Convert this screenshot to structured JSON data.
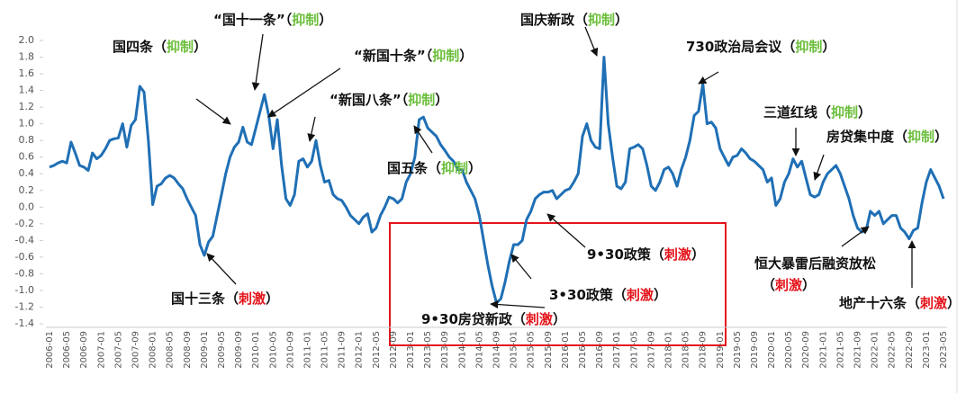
{
  "chart_data": {
    "type": "line",
    "color": "#1f6fb5",
    "categories": [
      "2006-01",
      null,
      null,
      null,
      "2006-05",
      null,
      null,
      null,
      "2006-09",
      null,
      null,
      null,
      "2007-01",
      null,
      null,
      null,
      "2007-05",
      null,
      null,
      null,
      "2007-09",
      null,
      null,
      null,
      "2008-01",
      null,
      null,
      null,
      "2008-05",
      null,
      null,
      null,
      "2008-09",
      null,
      null,
      null,
      "2009-01",
      null,
      null,
      null,
      "2009-05",
      null,
      null,
      null,
      "2009-09",
      null,
      null,
      null,
      "2010-01",
      null,
      null,
      null,
      "2010-05",
      null,
      null,
      null,
      "2010-09",
      null,
      null,
      null,
      "2011-01",
      null,
      null,
      null,
      "2011-05",
      null,
      null,
      null,
      "2011-09",
      null,
      null,
      null,
      "2012-01",
      null,
      null,
      null,
      "2012-05",
      null,
      null,
      null,
      "2012-09",
      null,
      null,
      null,
      "2013-01",
      null,
      null,
      null,
      "2013-05",
      null,
      null,
      null,
      "2013-09",
      null,
      null,
      null,
      "2014-01",
      null,
      null,
      null,
      "2014-05",
      null,
      null,
      null,
      "2014-09",
      null,
      null,
      null,
      "2015-01",
      null,
      null,
      null,
      "2015-05",
      null,
      null,
      null,
      "2015-09",
      null,
      null,
      null,
      "2016-01",
      null,
      null,
      null,
      "2016-05",
      null,
      null,
      null,
      "2016-09",
      null,
      null,
      null,
      "2017-01",
      null,
      null,
      null,
      "2017-05",
      null,
      null,
      null,
      "2017-09",
      null,
      null,
      null,
      "2018-01",
      null,
      null,
      null,
      "2018-05",
      null,
      null,
      null,
      "2018-09",
      null,
      null,
      null,
      "2019-01",
      null,
      null,
      null,
      "2019-05",
      null,
      null,
      null,
      "2019-09",
      null,
      null,
      null,
      "2020-01",
      null,
      null,
      null,
      "2020-05",
      null,
      null,
      null,
      "2020-09",
      null,
      null,
      null,
      "2021-01",
      null,
      null,
      null,
      "2021-05",
      null,
      null,
      null,
      "2021-09",
      null,
      null,
      null,
      "2022-01",
      null,
      null,
      null,
      "2022-05",
      null,
      null,
      null,
      "2022-09",
      null,
      null,
      null,
      "2023-01",
      null,
      null,
      null,
      "2023-05"
    ],
    "values": [
      0.48,
      0.5,
      0.53,
      0.55,
      0.53,
      0.78,
      0.65,
      0.5,
      0.48,
      0.44,
      0.65,
      0.58,
      0.62,
      0.7,
      0.8,
      0.82,
      0.83,
      1.0,
      0.72,
      0.98,
      1.05,
      1.45,
      1.38,
      0.8,
      0.03,
      0.25,
      0.28,
      0.35,
      0.38,
      0.35,
      0.28,
      0.22,
      0.1,
      0.0,
      -0.1,
      -0.45,
      -0.58,
      -0.42,
      -0.35,
      -0.1,
      0.15,
      0.4,
      0.6,
      0.72,
      0.78,
      0.96,
      0.78,
      0.75,
      0.95,
      1.15,
      1.35,
      1.1,
      0.7,
      1.05,
      0.5,
      0.1,
      0.02,
      0.15,
      0.55,
      0.58,
      0.48,
      0.55,
      0.8,
      0.5,
      0.3,
      0.32,
      0.15,
      0.1,
      0.08,
      0.0,
      -0.1,
      -0.15,
      -0.2,
      -0.12,
      -0.08,
      -0.3,
      -0.25,
      -0.1,
      0.0,
      0.12,
      0.1,
      0.05,
      0.1,
      0.3,
      0.4,
      0.6,
      1.05,
      1.08,
      0.95,
      0.9,
      0.85,
      0.75,
      0.68,
      0.6,
      0.55,
      0.45,
      0.45,
      0.3,
      0.2,
      0.1,
      -0.1,
      -0.4,
      -0.7,
      -0.95,
      -1.15,
      -1.1,
      -0.9,
      -0.65,
      -0.45,
      -0.45,
      -0.4,
      -0.15,
      -0.05,
      0.1,
      0.15,
      0.18,
      0.18,
      0.2,
      0.1,
      0.15,
      0.2,
      0.22,
      0.3,
      0.4,
      0.85,
      1.0,
      0.8,
      0.72,
      0.7,
      1.8,
      1.0,
      0.6,
      0.25,
      0.22,
      0.3,
      0.7,
      0.72,
      0.75,
      0.7,
      0.5,
      0.25,
      0.2,
      0.3,
      0.45,
      0.48,
      0.4,
      0.25,
      0.45,
      0.6,
      0.8,
      1.1,
      1.15,
      1.48,
      1.0,
      1.02,
      0.95,
      0.7,
      0.6,
      0.5,
      0.6,
      0.62,
      0.7,
      0.65,
      0.58,
      0.55,
      0.5,
      0.45,
      0.3,
      0.35,
      0.02,
      0.1,
      0.3,
      0.4,
      0.58,
      0.48,
      0.55,
      0.35,
      0.15,
      0.12,
      0.15,
      0.3,
      0.4,
      0.45,
      0.5,
      0.4,
      0.25,
      0.1,
      -0.1,
      -0.25,
      -0.3,
      -0.28,
      -0.05,
      -0.1,
      -0.05,
      -0.2,
      -0.15,
      -0.1,
      -0.1,
      -0.25,
      -0.3,
      -0.38,
      -0.28,
      -0.25,
      0.05,
      0.3,
      0.45,
      0.35,
      0.25,
      0.1
    ],
    "ylim": [
      -1.4,
      2.0
    ],
    "yticks": [
      {
        "value": 2,
        "label": "2.0"
      },
      1.8,
      1.6,
      1.4,
      1.2,
      {
        "value": 1,
        "label": "1.0"
      },
      0.8,
      0.6,
      0.4,
      0.2,
      {
        "value": 0,
        "label": "0.0"
      },
      -0.2,
      -0.4,
      -0.6,
      -0.8,
      {
        "value": -1,
        "label": "-1.0"
      },
      -1.2,
      -1.4
    ],
    "bracket_open": "（",
    "bracket_close": "）",
    "tag_colors": {
      "抑制": "#6cbf3c",
      "刺激": "#e4141b"
    },
    "annotations": [
      {
        "text": "国四条",
        "tag": "抑制"
      },
      {
        "text": "“国十一条”",
        "tag": "抑制"
      },
      {
        "text": "“新国十条”",
        "tag": "抑制"
      },
      {
        "text": "“新国八条”",
        "tag": "抑制"
      },
      {
        "text": "国五条",
        "tag": "抑制"
      },
      {
        "text": "国庆新政",
        "tag": "抑制"
      },
      {
        "text": "730政治局会议",
        "tag": "抑制"
      },
      {
        "text": "三道红线",
        "tag": "抑制"
      },
      {
        "text": "房贷集中度",
        "tag": "抑制"
      },
      {
        "text": "国十三条",
        "tag": "刺激"
      },
      {
        "text": "9•30政策",
        "tag": "刺激"
      },
      {
        "text": "3•30政策",
        "tag": "刺激"
      },
      {
        "text": "9•30房贷新政",
        "tag": "刺激"
      },
      {
        "text": "恒大暴雷后融资放松",
        "tag": "刺激"
      },
      {
        "text": "地产十六条",
        "tag": "刺激"
      }
    ]
  }
}
